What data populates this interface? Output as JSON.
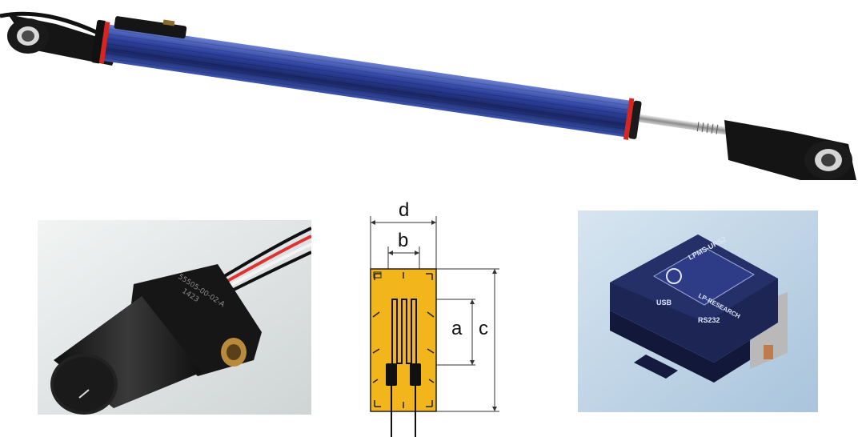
{
  "photos": [
    {
      "name": "linear-potentiometer",
      "description": "blue anodized linear position sensor with rod-end bearings"
    },
    {
      "name": "angle-sensor",
      "engraving_line1": "55505-00-02-A",
      "engraving_line2": "1423"
    },
    {
      "name": "strain-gauge-diagram",
      "labels": {
        "d": "d",
        "b": "b",
        "a": "a",
        "c": "c"
      }
    },
    {
      "name": "imu-module",
      "label_model": "LPMS-URS2",
      "label_brand": "LP-RESEARCH",
      "label_usb": "USB",
      "label_rs232": "RS232"
    }
  ],
  "colors": {
    "tube_blue": "#2c3f8c",
    "ring_red": "#d8251f",
    "gauge_yellow": "#f2b51c",
    "module_navy": "#1c2554",
    "background_light_blue": "#c9dcec"
  }
}
